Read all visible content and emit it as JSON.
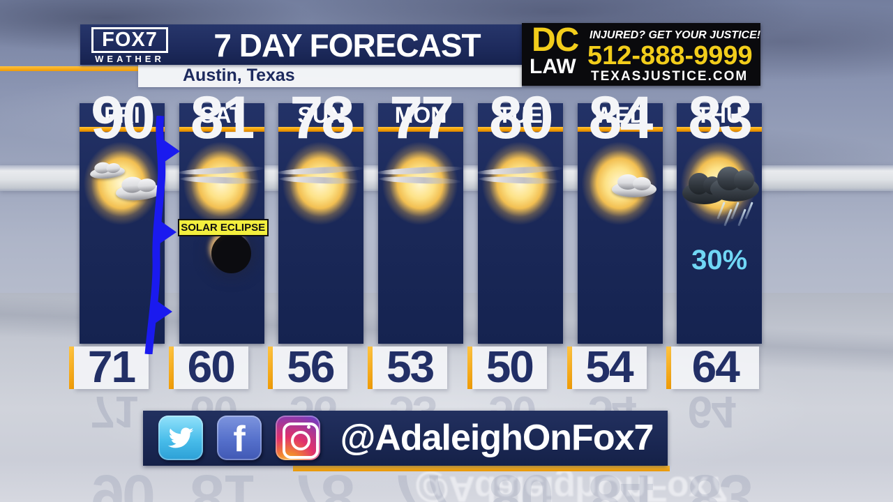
{
  "header": {
    "logo_line1": "FOX7",
    "logo_line2": "WEATHER",
    "title": "7 DAY FORECAST",
    "location": "Austin, Texas"
  },
  "ad": {
    "brand_line1": "DC",
    "brand_line2": "LAW",
    "tagline": "INJURED? GET YOUR JUSTICE!",
    "phone": "512-888-9999",
    "site": "TEXASJUSTICE.COM"
  },
  "days": [
    {
      "day": "FRI",
      "high": "90",
      "low": "71",
      "condition": "sun-two-clouds",
      "front": true
    },
    {
      "day": "SAT",
      "high": "81",
      "low": "60",
      "condition": "mostly-sunny",
      "eclipse": true,
      "badge": "SOLAR ECLIPSE"
    },
    {
      "day": "SUN",
      "high": "78",
      "low": "56",
      "condition": "mostly-sunny"
    },
    {
      "day": "MON",
      "high": "77",
      "low": "53",
      "condition": "mostly-sunny"
    },
    {
      "day": "TUE",
      "high": "80",
      "low": "50",
      "condition": "mostly-sunny"
    },
    {
      "day": "WED",
      "high": "84",
      "low": "54",
      "condition": "sun-small-cloud"
    },
    {
      "day": "THU",
      "high": "83",
      "low": "64",
      "condition": "storms",
      "pop": "30%"
    }
  ],
  "social": {
    "handle": "@AdaleighOnFox7",
    "icons": [
      {
        "name": "twitter-icon"
      },
      {
        "name": "facebook-icon",
        "glyph": "f"
      },
      {
        "name": "instagram-icon"
      }
    ]
  },
  "colors": {
    "navy": "#1b2959",
    "accent_orange": "#f5a300",
    "ad_yellow": "#f2cd1b",
    "pop_cyan": "#70d7f5",
    "front_blue": "#1a1aef",
    "badge_yellow": "#f3ef3e"
  },
  "chart_data": {
    "type": "table",
    "title": "7 DAY FORECAST",
    "subtitle": "Austin, Texas",
    "categories": [
      "FRI",
      "SAT",
      "SUN",
      "MON",
      "TUE",
      "WED",
      "THU"
    ],
    "series": [
      {
        "name": "High (F)",
        "values": [
          90,
          81,
          78,
          77,
          80,
          84,
          83
        ]
      },
      {
        "name": "Low (F)",
        "values": [
          71,
          60,
          56,
          53,
          50,
          54,
          64
        ]
      },
      {
        "name": "Precip chance",
        "values": [
          null,
          null,
          null,
          null,
          null,
          null,
          "30%"
        ]
      }
    ],
    "conditions": [
      "sun with clouds, cold front passing",
      "mostly sunny, solar eclipse",
      "mostly sunny",
      "mostly sunny",
      "mostly sunny",
      "sun with small cloud",
      "thunderstorms"
    ],
    "annotations": [
      "SOLAR ECLIPSE badge on SAT",
      "blue cold-front line over FRI"
    ],
    "legend_position": "none",
    "grid": false
  }
}
